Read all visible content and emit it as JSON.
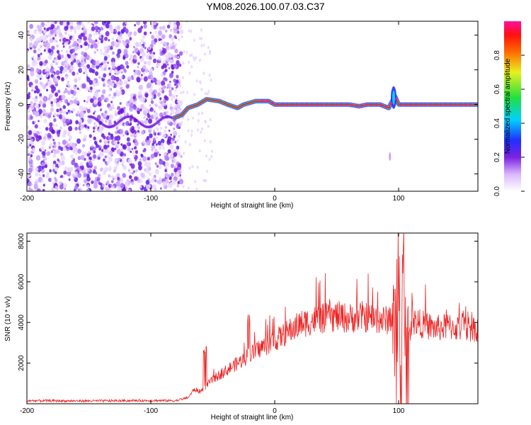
{
  "title": "YM08.2026.100.07.03.C37",
  "chart_data": [
    {
      "type": "heatmap",
      "title": "YM08.2026.100.07.03.C37",
      "xlabel": "Height of straight line (km)",
      "ylabel": "Frequency (Hz)",
      "xlim": [
        -200,
        164
      ],
      "ylim": [
        -50,
        48
      ],
      "xticks": [
        -200,
        -100,
        0,
        100
      ],
      "yticks": [
        -40,
        -20,
        0,
        20,
        40
      ],
      "colorbar": {
        "label": "Normalized spectral amplitude",
        "range": [
          0,
          1
        ],
        "ticks": [
          "0.0",
          "0.2",
          "0.4",
          "0.6",
          "0.8"
        ],
        "colormap": "rainbow (white-violet-blue-cyan-green-yellow-red-magenta)"
      },
      "signal_ridge": {
        "description": "strong narrowband signal near 0 Hz from about -80 km to 164 km",
        "x": [
          -82,
          -75,
          -70,
          -62,
          -55,
          -45,
          -38,
          -30,
          -25,
          -20,
          -15,
          -5,
          0,
          20,
          40,
          60,
          68,
          75,
          85,
          92,
          97,
          100,
          105,
          120,
          140,
          164
        ],
        "freq_hz": [
          -8,
          -6,
          -2,
          0,
          3,
          2,
          0,
          -2,
          0,
          1,
          2,
          2,
          0,
          0,
          0,
          0,
          -1,
          0,
          0,
          -2,
          5,
          0,
          0,
          0,
          0,
          0
        ]
      }
    },
    {
      "type": "line",
      "xlabel": "Height of straight line (km)",
      "ylabel": "SNR (10 * v/v)",
      "xlim": [
        -200,
        164
      ],
      "ylim": [
        0,
        8400
      ],
      "xticks": [
        -200,
        -100,
        0,
        100
      ],
      "yticks": [
        2000,
        4000,
        6000,
        8000
      ],
      "color": "#ee2222",
      "series": [
        {
          "name": "SNR",
          "x": [
            -200,
            -150,
            -100,
            -80,
            -70,
            -65,
            -60,
            -55,
            -50,
            -45,
            -40,
            -35,
            -30,
            -25,
            -20,
            -10,
            0,
            10,
            20,
            30,
            40,
            50,
            60,
            70,
            80,
            90,
            95,
            98,
            100,
            102,
            104,
            106,
            110,
            120,
            130,
            140,
            150,
            164
          ],
          "y": [
            150,
            140,
            160,
            150,
            300,
            700,
            600,
            900,
            1200,
            1400,
            1600,
            1800,
            2000,
            2200,
            2400,
            2800,
            3100,
            3500,
            3900,
            4100,
            4200,
            4300,
            4200,
            4300,
            4200,
            4100,
            4300,
            2000,
            7000,
            500,
            6500,
            1500,
            4100,
            3900,
            3700,
            3800,
            3700,
            3700
          ]
        }
      ]
    }
  ]
}
